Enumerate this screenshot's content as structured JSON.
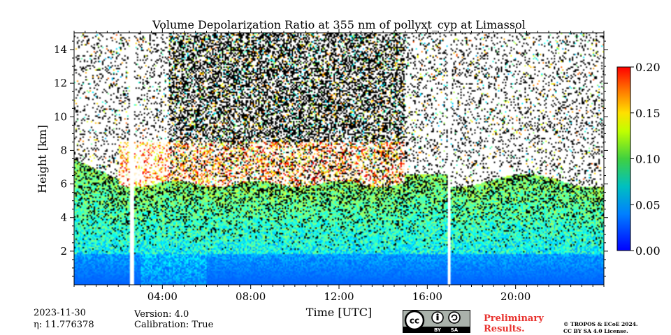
{
  "chart_data": {
    "type": "heatmap",
    "title": "Volume Depolarization Ratio at 355 nm of pollyxt_cyp at Limassol",
    "xlabel": "Time [UTC]",
    "ylabel": "Height [km]",
    "x_range_hours": [
      0,
      24
    ],
    "y_range_km": [
      0,
      15
    ],
    "x_ticks": [
      "04:00",
      "08:00",
      "12:00",
      "16:00",
      "20:00"
    ],
    "x_tick_hours": [
      4,
      8,
      12,
      16,
      20
    ],
    "y_ticks": [
      "2",
      "4",
      "6",
      "8",
      "10",
      "12",
      "14"
    ],
    "y_tick_values": [
      2,
      4,
      6,
      8,
      10,
      12,
      14
    ],
    "colorbar": {
      "range": [
        0.0,
        0.2
      ],
      "ticks": [
        "0.00",
        "0.05",
        "0.10",
        "0.15",
        "0.20"
      ],
      "tick_values": [
        0.0,
        0.05,
        0.1,
        0.15,
        0.2
      ],
      "colormap": "jet"
    },
    "data_gaps_hours": [
      [
        2.55,
        2.7
      ],
      [
        16.92,
        17.05
      ]
    ],
    "cloud_layer_km": [
      5.5,
      8.5
    ],
    "aerosol_layer_top_km": 6
  },
  "footer": {
    "date": "2023-11-30",
    "eta": "η: 11.776378",
    "version": "Version: 4.0",
    "calibration": "Calibration: True",
    "prelim_line1": "Preliminary",
    "prelim_line2": "Results.",
    "copyright_line1": "© TROPOS & ECoE 2024.",
    "copyright_line2": "CC BY SA 4.0 License.",
    "license_badge": "cc-by-sa-icon",
    "license_text_by": "BY",
    "license_text_sa": "SA",
    "colors": {
      "preliminary": "#e8332f"
    }
  }
}
